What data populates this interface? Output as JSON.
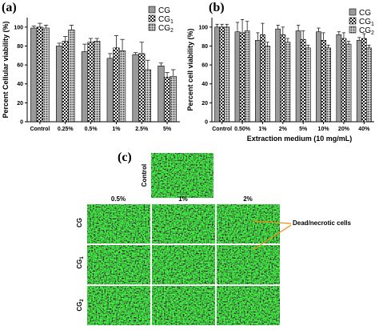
{
  "panels": {
    "a": "(a)",
    "b": "(b)",
    "c": "(c)"
  },
  "chart_data": [
    {
      "type": "bar",
      "panel": "(a)",
      "categories": [
        "Control",
        "0.25%",
        "0.5%",
        "1%",
        "2.5%",
        "5%"
      ],
      "ylabel": "Percent Cellular viability (%)",
      "xlabel": "",
      "ylim": [
        0,
        110
      ],
      "yticks": [
        0,
        20,
        40,
        60,
        80,
        100
      ],
      "legend": "top-right",
      "series": [
        {
          "name": "CG",
          "sub": "",
          "pattern": "grey",
          "values": [
            99,
            80,
            74,
            67,
            71,
            59
          ],
          "errors": [
            2,
            3,
            8,
            5,
            2,
            3
          ]
        },
        {
          "name": "CG",
          "sub": "1",
          "pattern": "checker",
          "values": [
            100,
            85,
            84,
            78,
            72,
            47
          ],
          "errors": [
            4,
            5,
            4,
            13,
            12,
            5
          ]
        },
        {
          "name": "CG",
          "sub": "2",
          "pattern": "dots",
          "values": [
            99,
            97,
            85,
            75,
            55,
            48
          ],
          "errors": [
            3,
            5,
            3,
            12,
            10,
            7
          ]
        }
      ]
    },
    {
      "type": "bar",
      "panel": "(b)",
      "categories": [
        "Control",
        "0.50%",
        "1%",
        "2%",
        "5%",
        "10%",
        "20%",
        "40%"
      ],
      "ylabel": "Percent cell viability (%)",
      "xlabel": "Extraction medium (10 mg/mL)",
      "ylim": [
        0,
        110
      ],
      "yticks": [
        0,
        20,
        40,
        60,
        80,
        100
      ],
      "legend": "top-right",
      "series": [
        {
          "name": "CG",
          "sub": "",
          "pattern": "grey",
          "values": [
            100,
            95,
            86,
            98,
            96,
            95,
            92,
            86
          ],
          "errors": [
            3,
            10,
            8,
            4,
            6,
            4,
            3,
            3
          ]
        },
        {
          "name": "CG",
          "sub": "1",
          "pattern": "checker",
          "values": [
            100,
            94,
            92,
            92,
            87,
            86,
            88,
            88
          ],
          "errors": [
            3,
            14,
            12,
            8,
            9,
            8,
            6,
            5
          ]
        },
        {
          "name": "CG",
          "sub": "2",
          "pattern": "dots",
          "values": [
            100,
            96,
            80,
            84,
            78,
            78,
            82,
            78
          ],
          "errors": [
            3,
            10,
            4,
            4,
            3,
            3,
            3,
            3
          ]
        }
      ]
    }
  ],
  "micrographs": {
    "row_labels": [
      "Control",
      "CG",
      "CG1",
      "CG2"
    ],
    "col_labels": [
      "0.5%",
      "1%",
      "2%"
    ],
    "annotation": "Dead/necrotic cells"
  }
}
